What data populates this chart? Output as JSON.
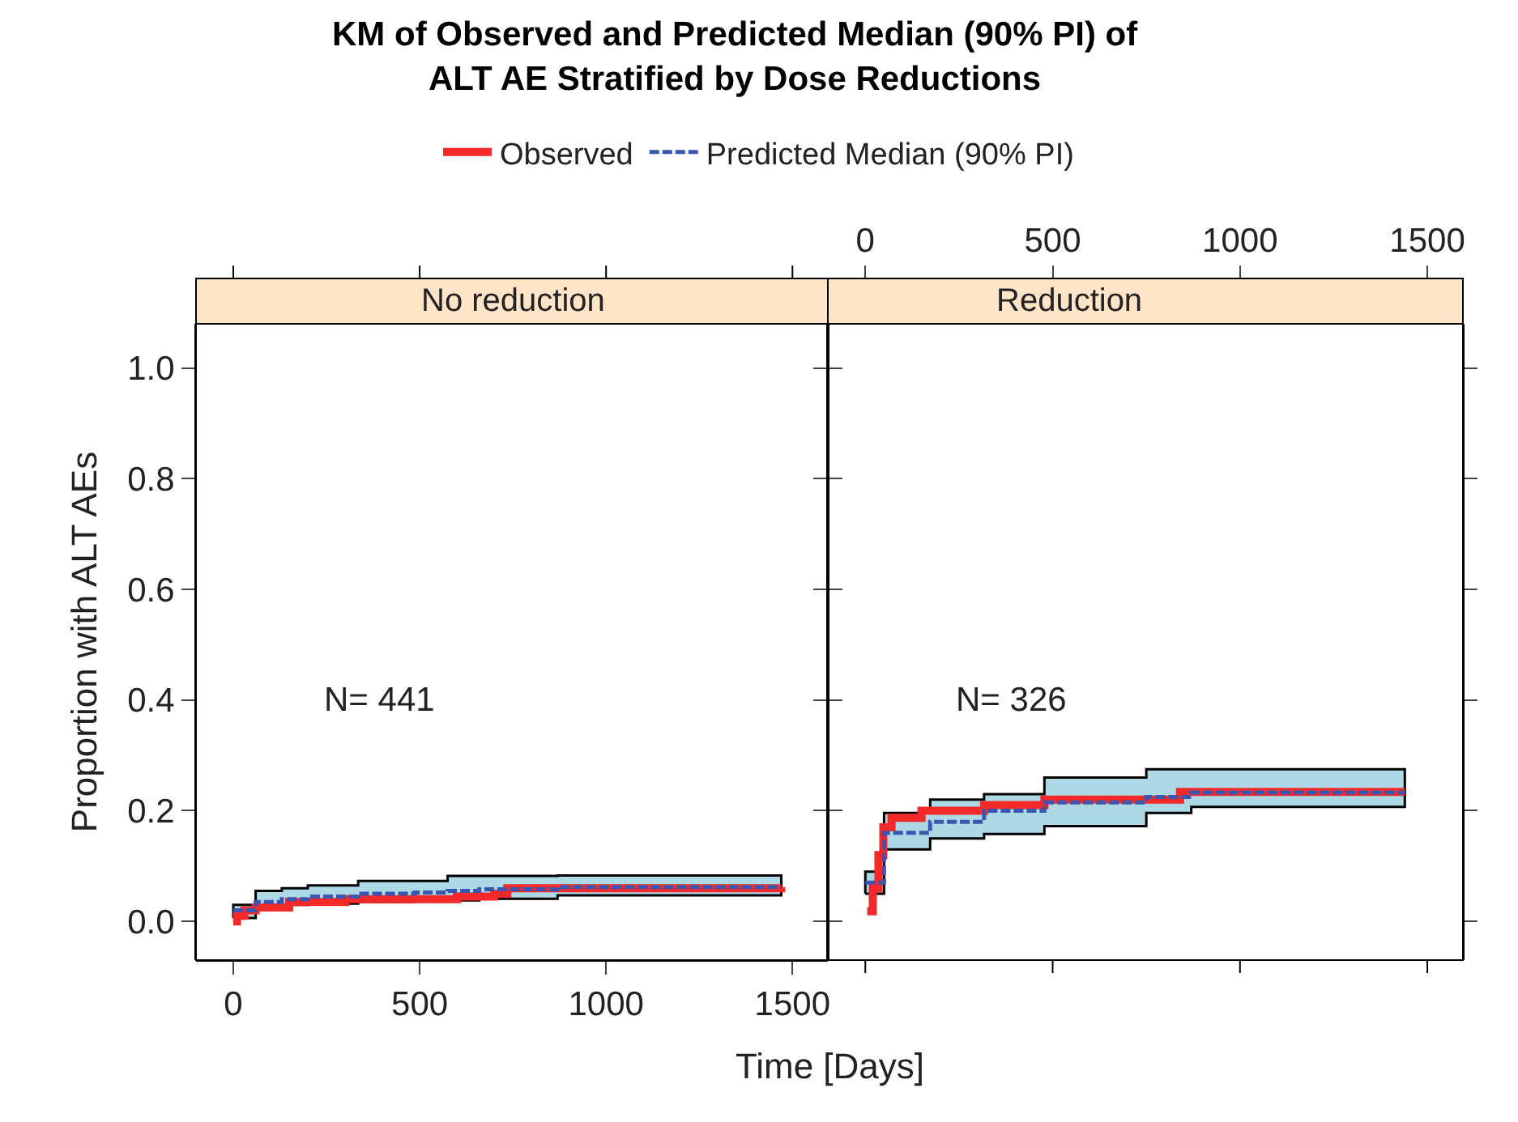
{
  "chart_data": [
    {
      "type": "step",
      "title": "KM of Observed and Predicted Median (90% PI) of\nALT AE Stratified by Dose Reductions",
      "subtitle": "No reduction",
      "xlabel": "Time [Days]",
      "ylabel": "Proportion with ALT AEs",
      "legend": "top",
      "xlim": [
        -100,
        1595
      ],
      "xticks": [
        0,
        500,
        1000,
        1500
      ],
      "ylim": [
        -0.07,
        1.08
      ],
      "yticks": [
        {
          "value": 0,
          "label": "0.0"
        },
        {
          "value": 0.2,
          "label": "0.2"
        },
        {
          "value": 0.4,
          "label": "0.4"
        },
        {
          "value": 0.6,
          "label": "0.6"
        },
        {
          "value": 0.8,
          "label": "0.8"
        },
        {
          "value": 1,
          "label": "1.0"
        }
      ],
      "annotations": [
        "N= 441"
      ],
      "grid": false,
      "series": [
        {
          "name": "Predicted Median (90% PI)",
          "color": "#3a56b0",
          "line_style": "dashed",
          "x": [
            0,
            60,
            130,
            200,
            335,
            487,
            575,
            660,
            870,
            1470
          ],
          "values": [
            0.02,
            0.035,
            0.04,
            0.045,
            0.05,
            0.052,
            0.055,
            0.058,
            0.062,
            0.062
          ],
          "lower": [
            0.006,
            0.03,
            0.03,
            0.032,
            0.035,
            0.038,
            0.038,
            0.041,
            0.047,
            0.047
          ],
          "upper": [
            0.03,
            0.055,
            0.06,
            0.065,
            0.073,
            0.073,
            0.082,
            0.082,
            0.083,
            0.083
          ]
        },
        {
          "name": "Observed",
          "color": "#f42a2a",
          "line_style": "solid",
          "x": [
            0,
            10,
            30,
            60,
            150,
            300,
            450,
            600,
            700,
            735,
            1470
          ],
          "values": [
            0.0,
            0.01,
            0.02,
            0.025,
            0.035,
            0.04,
            0.04,
            0.045,
            0.05,
            0.06,
            0.062
          ]
        }
      ]
    },
    {
      "type": "step",
      "subtitle": "Reduction",
      "tick_labels": "x",
      "grid": false,
      "xlim": [
        -100,
        1595
      ],
      "xticks": [
        0,
        500,
        1000,
        1500
      ],
      "ylim": [
        -0.07,
        1.08
      ],
      "yticks": [
        {
          "value": 0,
          "label": null
        },
        {
          "value": 0.2,
          "label": null
        },
        {
          "value": 0.4,
          "label": null
        },
        {
          "value": 0.6,
          "label": null
        },
        {
          "value": 0.8,
          "label": null
        },
        {
          "value": 1,
          "label": null
        }
      ],
      "annotations": [
        "N= 326"
      ],
      "series": [
        {
          "color": "#3a56b0",
          "line_style": "dashed",
          "x": [
            0,
            50,
            173,
            317,
            478,
            750,
            870,
            1440
          ],
          "values": [
            0.07,
            0.16,
            0.18,
            0.2,
            0.215,
            0.225,
            0.233,
            0.233
          ],
          "lower": [
            0.05,
            0.13,
            0.15,
            0.158,
            0.172,
            0.196,
            0.207,
            0.207
          ],
          "upper": [
            0.09,
            0.196,
            0.22,
            0.23,
            0.26,
            0.275,
            0.275,
            0.275
          ]
        },
        {
          "color": "#f42a2a",
          "line_style": "solid",
          "x": [
            5,
            20,
            35,
            48,
            70,
            150,
            317,
            478,
            840,
            1440
          ],
          "values": [
            0.018,
            0.06,
            0.12,
            0.17,
            0.187,
            0.2,
            0.21,
            0.22,
            0.234,
            0.234
          ]
        }
      ]
    }
  ]
}
